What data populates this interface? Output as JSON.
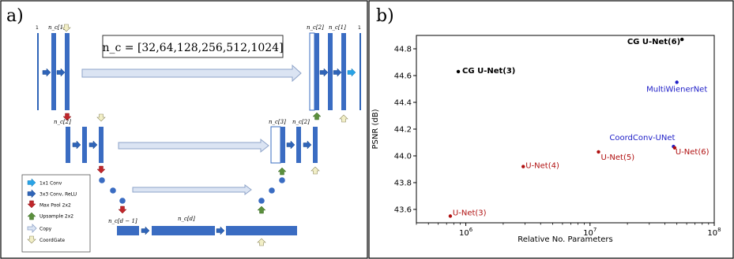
{
  "panel_a": {
    "label": "a)",
    "formula": "n_c = [32,64,128,256,512,1024]",
    "labels": {
      "in_channels": "1",
      "nc1": "n_c[1]",
      "nc2": "n_c[2]",
      "nc3": "n_c[3]",
      "ncd1": "n_c[d − 1]",
      "ncd": "n_c[d]",
      "out_channels": "1"
    },
    "legend": [
      {
        "label": "1x1 Conv",
        "icon": "arrow-right-cyan",
        "color": "#29a3e6"
      },
      {
        "label": "3x3 Conv, ReLU",
        "icon": "arrow-right-blue",
        "color": "#2f64b8"
      },
      {
        "label": "Max Pool 2x2",
        "icon": "arrow-down-red",
        "color": "#c0262b"
      },
      {
        "label": "Upsample 2x2",
        "icon": "arrow-up-green",
        "color": "#5a8f3c"
      },
      {
        "label": "Copy",
        "icon": "arrow-right-outline",
        "color": "#dbe4f3"
      },
      {
        "label": "CoordGate",
        "icon": "arrow-down-beige",
        "color": "#f2efc7"
      }
    ]
  },
  "panel_b": {
    "label": "b)",
    "chart_data": {
      "type": "scatter",
      "xlabel": "Relative No. Parameters",
      "ylabel": "PSNR (dB)",
      "xscale": "log",
      "xlim": [
        400000,
        100000000
      ],
      "ylim": [
        43.5,
        44.9
      ],
      "xticks": [
        {
          "value": 1000000,
          "base": "10",
          "exp": "6"
        },
        {
          "value": 10000000,
          "base": "10",
          "exp": "7"
        },
        {
          "value": 100000000,
          "base": "10",
          "exp": "8"
        }
      ],
      "yticks": [
        "43.6",
        "43.8",
        "44.0",
        "44.2",
        "44.4",
        "44.6",
        "44.8"
      ],
      "points": [
        {
          "label": "CG U-Net(6)",
          "x": 55000000,
          "y": 44.87,
          "color": "#000000",
          "bold": true,
          "anchor": "end",
          "dx": -2,
          "dy": 6
        },
        {
          "label": "CG U-Net(3)",
          "x": 870000,
          "y": 44.63,
          "color": "#000000",
          "bold": true,
          "anchor": "start",
          "dx": 5,
          "dy": 2
        },
        {
          "label": "MultiWienerNet",
          "x": 50000000,
          "y": 44.55,
          "color": "#2020c8",
          "bold": false,
          "anchor": "middle",
          "dx": 0,
          "dy": 12
        },
        {
          "label": "CoordConv-UNet",
          "x": 47000000,
          "y": 44.07,
          "color": "#2020c8",
          "bold": false,
          "anchor": "end",
          "dx": 2,
          "dy": -8
        },
        {
          "label": "U-Net(6)",
          "x": 48000000,
          "y": 44.06,
          "color": "#b01010",
          "bold": false,
          "anchor": "start",
          "dx": 1,
          "dy": 8
        },
        {
          "label": "U-Net(5)",
          "x": 11700000,
          "y": 44.03,
          "color": "#b01010",
          "bold": false,
          "anchor": "start",
          "dx": 3,
          "dy": 10
        },
        {
          "label": "U-Net(4)",
          "x": 2900000,
          "y": 43.92,
          "color": "#b01010",
          "bold": false,
          "anchor": "start",
          "dx": 3,
          "dy": 2
        },
        {
          "label": "U-Net(3)",
          "x": 750000,
          "y": 43.55,
          "color": "#b01010",
          "bold": false,
          "anchor": "start",
          "dx": 3,
          "dy": -1
        }
      ]
    }
  }
}
